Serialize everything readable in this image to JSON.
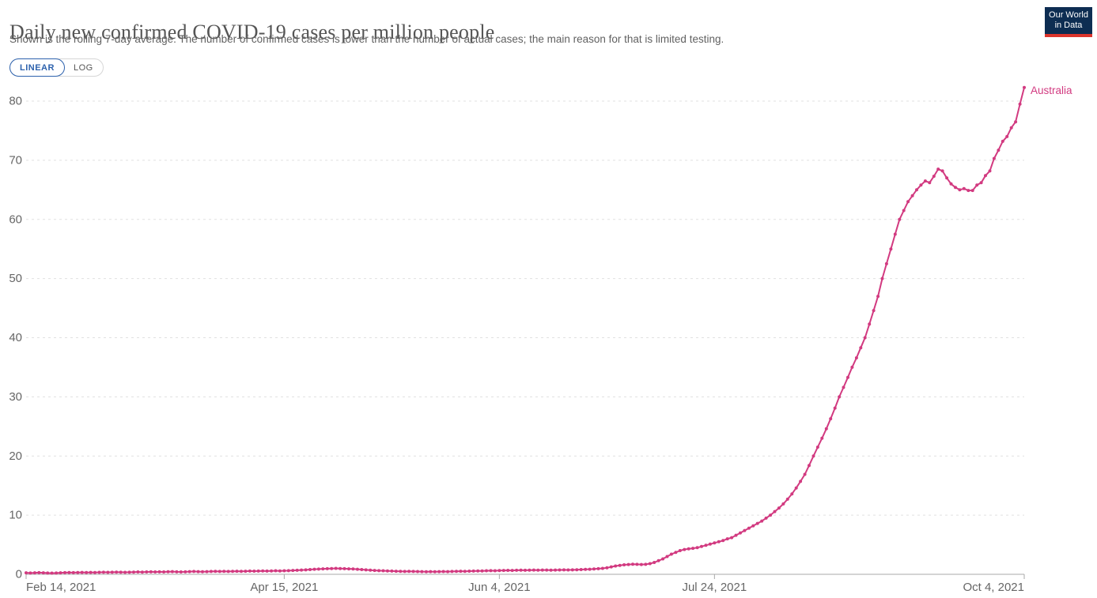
{
  "header": {
    "title": "Daily new confirmed COVID-19 cases per million people",
    "subtitle": "Shown is the rolling 7-day average. The number of confirmed cases is lower than the number of actual cases; the main reason for that is limited testing.",
    "logo": {
      "line1": "Our World",
      "line2": "in Data",
      "bg_color": "#0d2d52",
      "stripe_color": "#dc352c"
    }
  },
  "controls": {
    "linear_label": "LINEAR",
    "log_label": "LOG",
    "active": "LINEAR",
    "active_color": "#2d62ad"
  },
  "chart_data": {
    "type": "line",
    "title": "Daily new confirmed COVID-19 cases per million people",
    "grid": "horizontal-dashed",
    "legend_position": "end-of-line-label",
    "y_ticks": [
      0,
      10,
      20,
      30,
      40,
      50,
      60,
      70,
      80
    ],
    "ylim": [
      0,
      84
    ],
    "x_ticks": [
      {
        "label": "Feb 14, 2021",
        "day": 0
      },
      {
        "label": "Apr 15, 2021",
        "day": 60
      },
      {
        "label": "Jun 4, 2021",
        "day": 110
      },
      {
        "label": "Jul 24, 2021",
        "day": 160
      },
      {
        "label": "Oct 4, 2021",
        "day": 232
      }
    ],
    "series": [
      {
        "name": "Australia",
        "color": "#d23a80",
        "start_date": "2021-02-14",
        "end_date": "2021-10-04",
        "interval_days": 1,
        "values": [
          0.25,
          0.22,
          0.25,
          0.28,
          0.25,
          0.22,
          0.2,
          0.22,
          0.25,
          0.28,
          0.3,
          0.28,
          0.3,
          0.32,
          0.3,
          0.32,
          0.3,
          0.33,
          0.35,
          0.33,
          0.35,
          0.38,
          0.35,
          0.33,
          0.35,
          0.38,
          0.4,
          0.38,
          0.4,
          0.42,
          0.4,
          0.42,
          0.4,
          0.43,
          0.45,
          0.42,
          0.4,
          0.42,
          0.45,
          0.48,
          0.45,
          0.43,
          0.45,
          0.48,
          0.5,
          0.48,
          0.5,
          0.48,
          0.5,
          0.52,
          0.5,
          0.52,
          0.55,
          0.53,
          0.55,
          0.58,
          0.55,
          0.57,
          0.6,
          0.58,
          0.6,
          0.62,
          0.65,
          0.68,
          0.72,
          0.75,
          0.8,
          0.85,
          0.88,
          0.92,
          0.95,
          0.98,
          1.0,
          0.98,
          0.95,
          0.92,
          0.9,
          0.85,
          0.8,
          0.75,
          0.7,
          0.65,
          0.62,
          0.6,
          0.58,
          0.55,
          0.52,
          0.5,
          0.48,
          0.5,
          0.48,
          0.47,
          0.45,
          0.44,
          0.45,
          0.43,
          0.45,
          0.47,
          0.45,
          0.48,
          0.5,
          0.52,
          0.5,
          0.53,
          0.55,
          0.57,
          0.58,
          0.6,
          0.62,
          0.6,
          0.63,
          0.65,
          0.67,
          0.65,
          0.68,
          0.7,
          0.68,
          0.7,
          0.72,
          0.7,
          0.72,
          0.72,
          0.7,
          0.72,
          0.73,
          0.75,
          0.73,
          0.75,
          0.78,
          0.8,
          0.83,
          0.85,
          0.9,
          0.95,
          1.0,
          1.1,
          1.25,
          1.4,
          1.5,
          1.6,
          1.65,
          1.7,
          1.68,
          1.65,
          1.68,
          1.8,
          2.0,
          2.3,
          2.6,
          3.0,
          3.4,
          3.7,
          4.0,
          4.2,
          4.3,
          4.4,
          4.5,
          4.7,
          4.9,
          5.1,
          5.3,
          5.5,
          5.7,
          6.0,
          6.2,
          6.6,
          7.0,
          7.4,
          7.8,
          8.2,
          8.6,
          9.0,
          9.5,
          10.0,
          10.6,
          11.2,
          11.9,
          12.7,
          13.6,
          14.6,
          15.7,
          16.9,
          18.4,
          20.0,
          21.5,
          23.0,
          24.6,
          26.3,
          28.1,
          30.0,
          31.6,
          33.3,
          35.0,
          36.6,
          38.3,
          40.0,
          42.3,
          44.6,
          47.0,
          50.0,
          52.5,
          55.0,
          57.5,
          60.0,
          61.5,
          63.0,
          64.0,
          65.0,
          65.8,
          66.5,
          66.2,
          67.3,
          68.5,
          68.2,
          67.0,
          66.0,
          65.4,
          65.0,
          65.2,
          64.9,
          64.9,
          65.8,
          66.2,
          67.4,
          68.2,
          70.3,
          71.7,
          73.2,
          74.0,
          75.5,
          76.5,
          79.5,
          82.3
        ]
      }
    ],
    "axis_color": "#a8a8a8",
    "gridline_color": "#e0e0e0",
    "tick_label_color": "#666666"
  }
}
